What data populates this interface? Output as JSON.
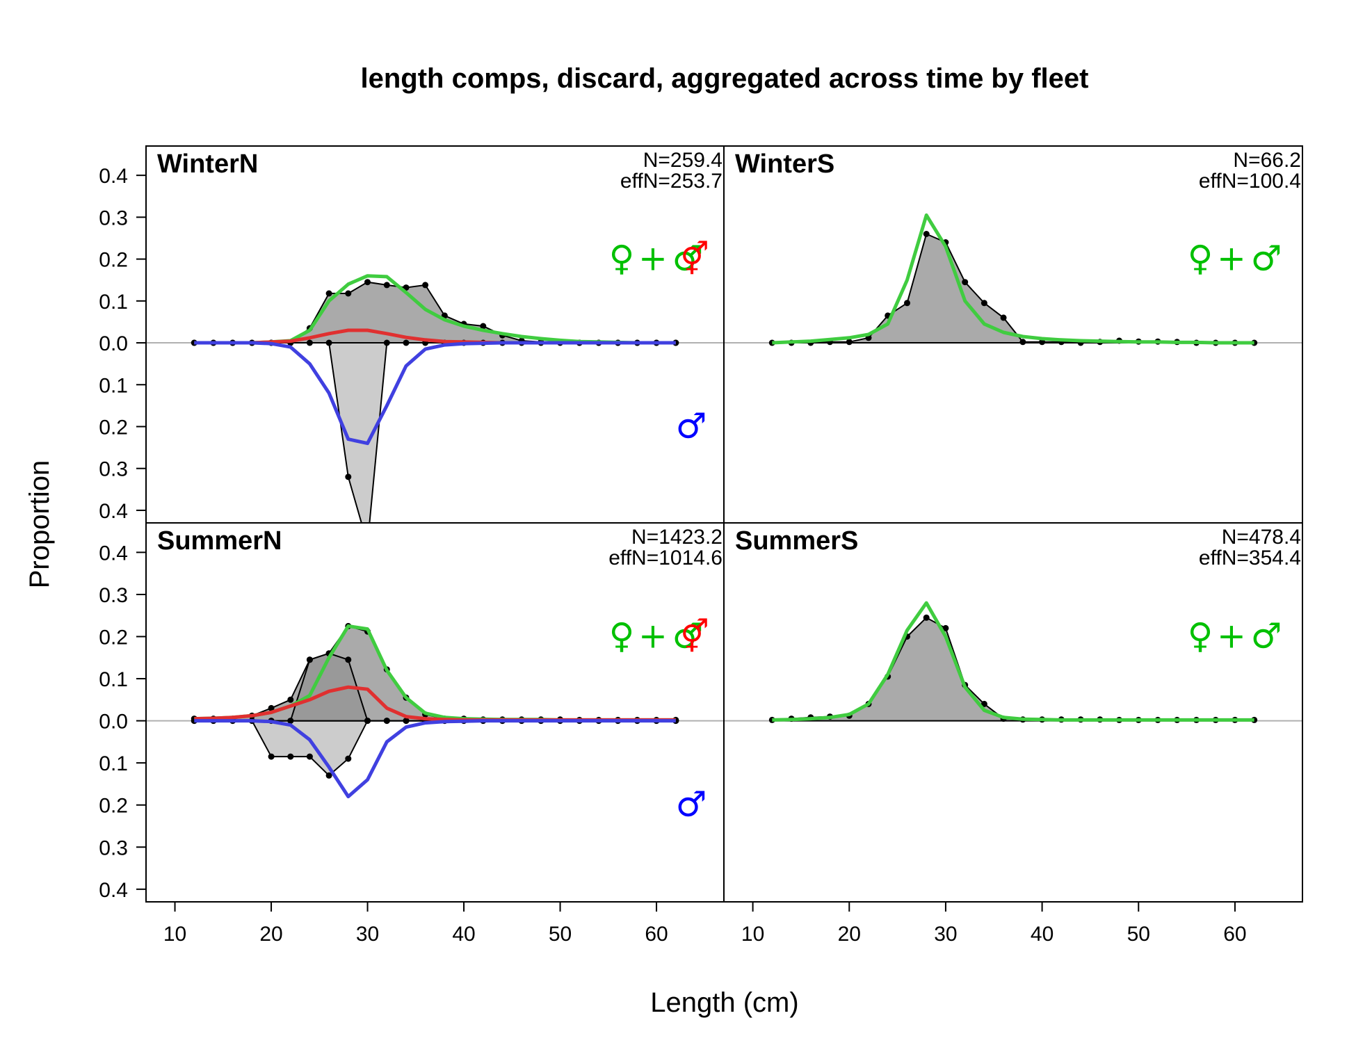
{
  "chart_data": {
    "type": "area",
    "title": "length comps, discard, aggregated across time by fleet",
    "xlabel": "Length (cm)",
    "ylabel": "Proportion",
    "xlim": [
      7,
      67
    ],
    "xticks": [
      10,
      20,
      30,
      40,
      50,
      60
    ],
    "ylim": [
      -0.43,
      0.47
    ],
    "yticks": [
      0.4,
      0.3,
      0.2,
      0.1,
      0.0,
      0.1,
      0.2,
      0.3,
      0.4
    ],
    "x": [
      12,
      14,
      16,
      18,
      20,
      22,
      24,
      26,
      28,
      30,
      32,
      34,
      36,
      38,
      40,
      42,
      44,
      46,
      48,
      50,
      52,
      54,
      56,
      58,
      60,
      62
    ],
    "colors": {
      "female": "#ff0000",
      "male": "#0000ff",
      "combined": "#00c000",
      "fill_dark": "#aaaaaa",
      "fill_light": "#cccccc",
      "female_line": "#e03030",
      "male_line": "#4040e0",
      "combined_line": "#40cc40"
    },
    "panels": [
      {
        "name": "WinterN",
        "n_label": "N=259.4",
        "effn_label": "effN=253.7",
        "sex_symbols": {
          "female": "♀",
          "plus": "+",
          "male": "♂",
          "split_female_male": "⚥",
          "male_lower": "♂"
        },
        "series": [
          {
            "role": "observed_top",
            "values": [
              0.0,
              0.0,
              0.0,
              0.0,
              0.0,
              0.0,
              0.035,
              0.118,
              0.118,
              0.145,
              0.138,
              0.132,
              0.138,
              0.065,
              0.045,
              0.04,
              0.018,
              0.005,
              0.002,
              0.002,
              0.0,
              0.0,
              0.0,
              0.0,
              0.0,
              0.0
            ]
          },
          {
            "role": "observed_bottom",
            "values": [
              0.0,
              0.0,
              0.0,
              0.0,
              0.0,
              0.0,
              0.0,
              0.0,
              -0.32,
              -0.48,
              0.0,
              0.0,
              0.0,
              0.0,
              0.0,
              0.0,
              0.0,
              0.0,
              0.0,
              0.0,
              0.0,
              0.0,
              0.0,
              0.0,
              0.0,
              0.0
            ]
          },
          {
            "role": "expected_combined",
            "values": [
              0.0,
              0.0,
              0.0,
              0.0,
              0.002,
              0.005,
              0.03,
              0.1,
              0.14,
              0.16,
              0.158,
              0.12,
              0.08,
              0.055,
              0.04,
              0.03,
              0.022,
              0.015,
              0.01,
              0.006,
              0.003,
              0.002,
              0.001,
              0.0,
              0.0,
              0.0
            ]
          },
          {
            "role": "expected_female",
            "values": [
              0.0,
              0.0,
              0.0,
              0.0,
              0.002,
              0.004,
              0.012,
              0.022,
              0.03,
              0.03,
              0.022,
              0.013,
              0.007,
              0.003,
              0.002,
              0.001,
              0.0,
              0.0,
              0.0,
              0.0,
              0.0,
              0.0,
              0.0,
              0.0,
              0.0,
              0.0
            ]
          },
          {
            "role": "expected_male",
            "values": [
              0.0,
              0.0,
              0.0,
              0.0,
              -0.002,
              -0.01,
              -0.05,
              -0.12,
              -0.23,
              -0.24,
              -0.15,
              -0.055,
              -0.015,
              -0.005,
              -0.002,
              -0.001,
              0.0,
              0.0,
              0.0,
              0.0,
              0.0,
              0.0,
              0.0,
              0.0,
              0.0,
              0.0
            ]
          }
        ]
      },
      {
        "name": "WinterS",
        "n_label": "N=66.2",
        "effn_label": "effN=100.4",
        "sex_symbols": {
          "female": "♀",
          "plus": "+",
          "male": "♂"
        },
        "series": [
          {
            "role": "observed_top",
            "values": [
              0.0,
              0.0,
              0.0,
              0.002,
              0.002,
              0.012,
              0.065,
              0.095,
              0.26,
              0.24,
              0.145,
              0.095,
              0.06,
              0.002,
              0.002,
              0.002,
              0.0,
              0.002,
              0.005,
              0.003,
              0.003,
              0.002,
              0.0,
              0.0,
              0.0,
              0.0
            ]
          },
          {
            "role": "expected_combined",
            "values": [
              0.0,
              0.002,
              0.004,
              0.008,
              0.012,
              0.02,
              0.045,
              0.15,
              0.305,
              0.23,
              0.1,
              0.045,
              0.025,
              0.015,
              0.01,
              0.007,
              0.005,
              0.004,
              0.003,
              0.002,
              0.002,
              0.001,
              0.001,
              0.0,
              0.0,
              0.0
            ]
          }
        ]
      },
      {
        "name": "SummerN",
        "n_label": "N=1423.2",
        "effn_label": "effN=1014.6",
        "sex_symbols": {
          "female": "♀",
          "plus": "+",
          "male": "♂",
          "split_female_male": "⚥",
          "male_lower": "♂"
        },
        "series": [
          {
            "role": "observed_top",
            "values": [
              0.005,
              0.005,
              0.005,
              0.012,
              0.03,
              0.05,
              0.145,
              0.16,
              0.225,
              0.212,
              0.122,
              0.055,
              0.015,
              0.005,
              0.005,
              0.003,
              0.003,
              0.003,
              0.003,
              0.003,
              0.002,
              0.002,
              0.002,
              0.002,
              0.002,
              0.002
            ]
          },
          {
            "role": "observed_female",
            "values": [
              0.0,
              0.0,
              0.0,
              0.0,
              0.0,
              0.0,
              0.145,
              0.16,
              0.145,
              0.0,
              0.0,
              0.0,
              0.0,
              0.0,
              0.0,
              0.0,
              0.0,
              0.0,
              0.0,
              0.0,
              0.0,
              0.0,
              0.0,
              0.0,
              0.0,
              0.0
            ]
          },
          {
            "role": "observed_bottom",
            "values": [
              0.0,
              0.0,
              0.0,
              0.0,
              -0.085,
              -0.085,
              -0.085,
              -0.13,
              -0.09,
              0.0,
              0.0,
              0.0,
              0.0,
              0.0,
              0.0,
              0.0,
              0.0,
              0.0,
              0.0,
              0.0,
              0.0,
              0.0,
              0.0,
              0.0,
              0.0,
              0.0
            ]
          },
          {
            "role": "expected_combined",
            "values": [
              0.005,
              0.006,
              0.008,
              0.012,
              0.02,
              0.035,
              0.06,
              0.15,
              0.225,
              0.218,
              0.12,
              0.055,
              0.018,
              0.008,
              0.005,
              0.004,
              0.003,
              0.003,
              0.003,
              0.002,
              0.002,
              0.002,
              0.002,
              0.002,
              0.002,
              0.002
            ]
          },
          {
            "role": "expected_female",
            "values": [
              0.005,
              0.006,
              0.008,
              0.012,
              0.02,
              0.035,
              0.05,
              0.07,
              0.08,
              0.075,
              0.03,
              0.01,
              0.005,
              0.003,
              0.002,
              0.002,
              0.002,
              0.002,
              0.002,
              0.002,
              0.002,
              0.002,
              0.002,
              0.002,
              0.002,
              0.002
            ]
          },
          {
            "role": "expected_male",
            "values": [
              0.0,
              0.0,
              0.0,
              0.0,
              -0.002,
              -0.01,
              -0.045,
              -0.11,
              -0.18,
              -0.14,
              -0.05,
              -0.015,
              -0.005,
              -0.002,
              -0.001,
              0.0,
              0.0,
              0.0,
              0.0,
              0.0,
              0.0,
              0.0,
              0.0,
              0.0,
              0.0,
              0.0
            ]
          }
        ]
      },
      {
        "name": "SummerS",
        "n_label": "N=478.4",
        "effn_label": "effN=354.4",
        "sex_symbols": {
          "female": "♀",
          "plus": "+",
          "male": "♂"
        },
        "series": [
          {
            "role": "observed_top",
            "values": [
              0.002,
              0.005,
              0.008,
              0.01,
              0.012,
              0.04,
              0.105,
              0.2,
              0.245,
              0.22,
              0.085,
              0.04,
              0.005,
              0.003,
              0.003,
              0.003,
              0.003,
              0.003,
              0.002,
              0.002,
              0.002,
              0.002,
              0.002,
              0.002,
              0.002,
              0.002
            ]
          },
          {
            "role": "expected_combined",
            "values": [
              0.002,
              0.003,
              0.005,
              0.008,
              0.015,
              0.04,
              0.11,
              0.215,
              0.28,
              0.2,
              0.08,
              0.025,
              0.008,
              0.004,
              0.003,
              0.002,
              0.002,
              0.002,
              0.002,
              0.002,
              0.002,
              0.002,
              0.002,
              0.002,
              0.002,
              0.002
            ]
          }
        ]
      }
    ]
  }
}
